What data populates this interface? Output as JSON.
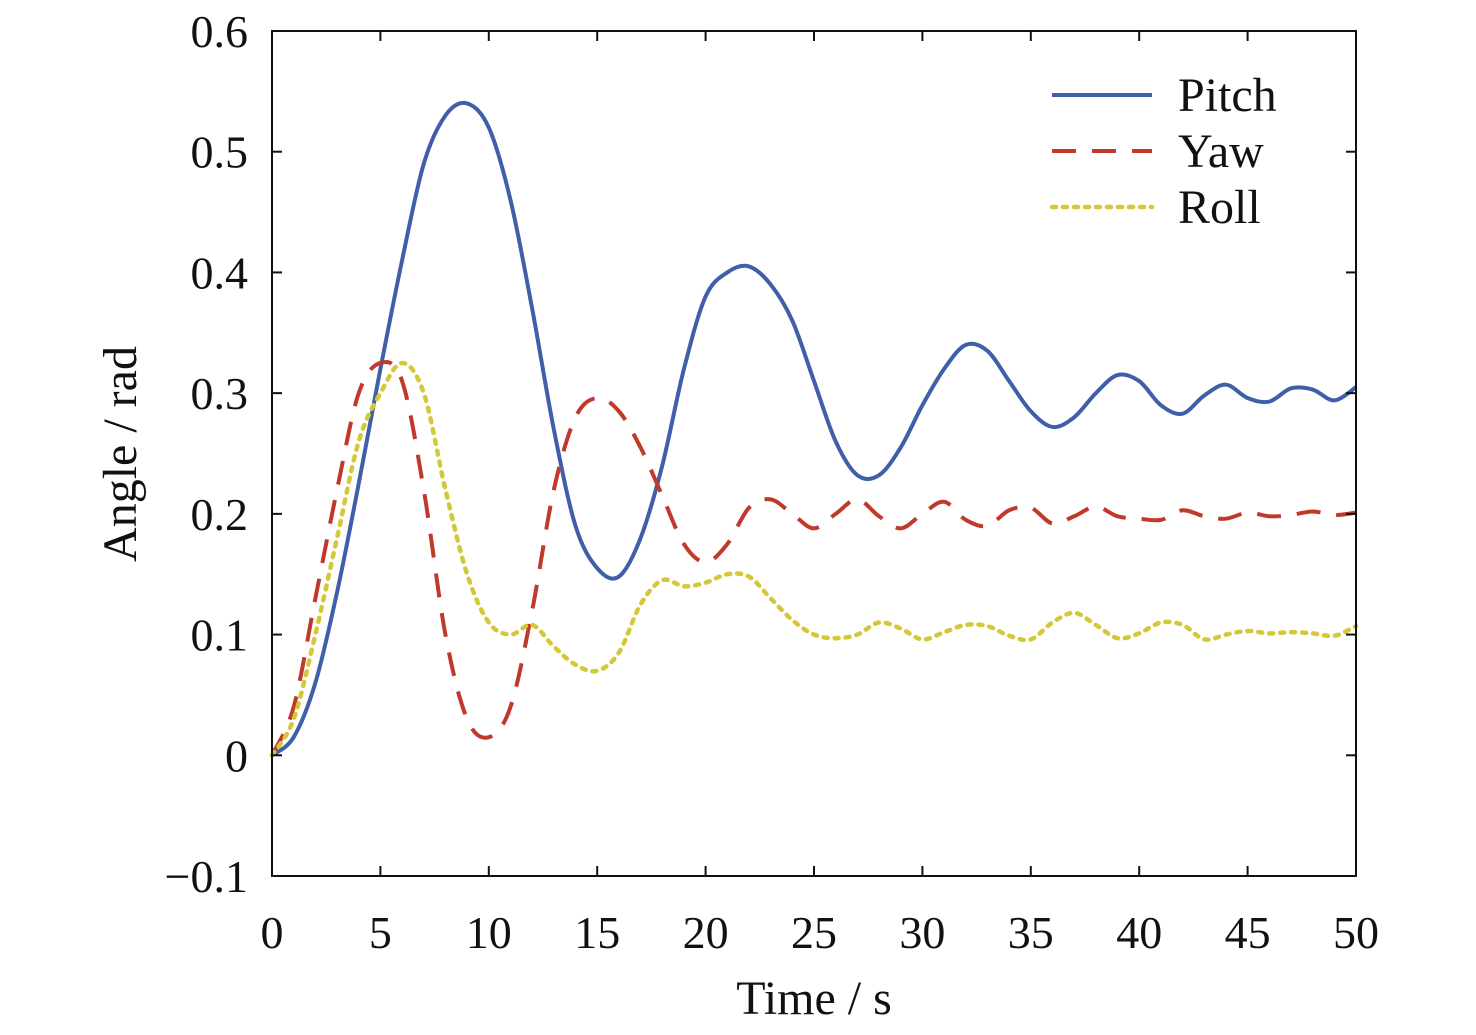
{
  "chart_data": {
    "type": "line",
    "title": "",
    "xlabel": "Time / s",
    "ylabel": "Angle / rad",
    "xlim": [
      0,
      50
    ],
    "ylim": [
      -0.1,
      0.6
    ],
    "x_ticks": [
      0,
      5,
      10,
      15,
      20,
      25,
      30,
      35,
      40,
      45,
      50
    ],
    "x_tick_labels": [
      "0",
      "5",
      "10",
      "15",
      "20",
      "25",
      "30",
      "35",
      "40",
      "45",
      "50"
    ],
    "y_ticks": [
      -0.1,
      0,
      0.1,
      0.2,
      0.3,
      0.4,
      0.5,
      0.6
    ],
    "y_tick_labels": [
      "−0.1",
      "0",
      "0.1",
      "0.2",
      "0.3",
      "0.4",
      "0.5",
      "0.6"
    ],
    "grid": false,
    "legend_position": "top-right",
    "series": [
      {
        "name": "Pitch",
        "color": "#3f5fa8",
        "line_style": "solid",
        "x": [
          0,
          1,
          2,
          3,
          4,
          5,
          6,
          7,
          8,
          9,
          10,
          11,
          12,
          13,
          14,
          15,
          16,
          17,
          18,
          19,
          20,
          21,
          22,
          23,
          24,
          25,
          26,
          27,
          28,
          29,
          30,
          31,
          32,
          33,
          34,
          35,
          36,
          37,
          38,
          39,
          40,
          41,
          42,
          43,
          44,
          45,
          46,
          47,
          48,
          49,
          50
        ],
        "values": [
          0.0,
          0.015,
          0.06,
          0.135,
          0.225,
          0.32,
          0.41,
          0.49,
          0.53,
          0.54,
          0.52,
          0.46,
          0.37,
          0.27,
          0.19,
          0.155,
          0.148,
          0.18,
          0.24,
          0.32,
          0.38,
          0.4,
          0.405,
          0.39,
          0.36,
          0.31,
          0.26,
          0.232,
          0.232,
          0.255,
          0.29,
          0.32,
          0.34,
          0.335,
          0.31,
          0.285,
          0.272,
          0.28,
          0.3,
          0.315,
          0.31,
          0.29,
          0.283,
          0.298,
          0.307,
          0.296,
          0.293,
          0.304,
          0.303,
          0.294,
          0.305
        ]
      },
      {
        "name": "Yaw",
        "color": "#c0392b",
        "line_style": "dashed",
        "x": [
          0,
          1,
          2,
          3,
          4,
          5,
          6,
          7,
          8,
          9,
          10,
          11,
          12,
          13,
          14,
          15,
          16,
          17,
          18,
          19,
          20,
          21,
          22,
          23,
          24,
          25,
          26,
          27,
          28,
          29,
          30,
          31,
          32,
          33,
          34,
          35,
          36,
          37,
          38,
          39,
          40,
          41,
          42,
          43,
          44,
          45,
          46,
          47,
          48,
          49,
          50
        ],
        "values": [
          0.0,
          0.04,
          0.13,
          0.22,
          0.3,
          0.325,
          0.31,
          0.22,
          0.1,
          0.03,
          0.015,
          0.04,
          0.12,
          0.22,
          0.28,
          0.296,
          0.285,
          0.255,
          0.215,
          0.175,
          0.16,
          0.175,
          0.205,
          0.212,
          0.2,
          0.188,
          0.2,
          0.212,
          0.198,
          0.188,
          0.2,
          0.21,
          0.195,
          0.19,
          0.203,
          0.205,
          0.192,
          0.198,
          0.206,
          0.198,
          0.196,
          0.195,
          0.203,
          0.198,
          0.196,
          0.201,
          0.198,
          0.199,
          0.202,
          0.199,
          0.201
        ]
      },
      {
        "name": "Roll",
        "color": "#d4c838",
        "line_style": "dotted",
        "x": [
          0,
          1,
          2,
          3,
          4,
          5,
          6,
          7,
          8,
          9,
          10,
          11,
          12,
          13,
          14,
          15,
          16,
          17,
          18,
          19,
          20,
          21,
          22,
          23,
          24,
          25,
          26,
          27,
          28,
          29,
          30,
          31,
          32,
          33,
          34,
          35,
          36,
          37,
          38,
          39,
          40,
          41,
          42,
          43,
          44,
          45,
          46,
          47,
          48,
          49,
          50
        ],
        "values": [
          0.0,
          0.03,
          0.1,
          0.18,
          0.26,
          0.3,
          0.325,
          0.3,
          0.22,
          0.15,
          0.11,
          0.1,
          0.108,
          0.09,
          0.075,
          0.07,
          0.085,
          0.125,
          0.145,
          0.14,
          0.143,
          0.15,
          0.148,
          0.13,
          0.112,
          0.1,
          0.097,
          0.1,
          0.11,
          0.105,
          0.096,
          0.102,
          0.108,
          0.107,
          0.099,
          0.096,
          0.11,
          0.118,
          0.108,
          0.097,
          0.101,
          0.11,
          0.108,
          0.096,
          0.1,
          0.103,
          0.101,
          0.102,
          0.101,
          0.099,
          0.107
        ]
      }
    ]
  }
}
